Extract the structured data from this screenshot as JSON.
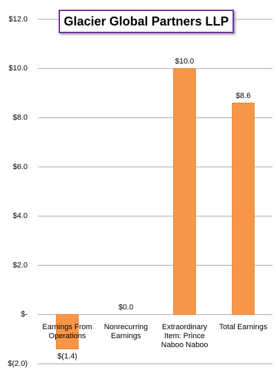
{
  "chart_data": {
    "type": "bar",
    "title": "Glacier Global Partners LLP",
    "categories": [
      "Earnings From Operations",
      "Nonrecurring Earnings",
      "Extraordinary Item: Prince Naboo Naboo",
      "Total Earnings"
    ],
    "values": [
      -1.4,
      0.0,
      10.0,
      8.6
    ],
    "value_labels": [
      "$(1.4)",
      "$0.0",
      "$10.0",
      "$8.6"
    ],
    "color": "#f79646",
    "ylim": [
      -2,
      12
    ],
    "yticks": [
      {
        "value": -2,
        "label": "$(2.0)"
      },
      {
        "value": 0,
        "label": "$-"
      },
      {
        "value": 2,
        "label": "$2.0"
      },
      {
        "value": 4,
        "label": "$4.0"
      },
      {
        "value": 6,
        "label": "$6.0"
      },
      {
        "value": 8,
        "label": "$8.0"
      },
      {
        "value": 10,
        "label": "$10.0"
      },
      {
        "value": 12,
        "label": "$12.0"
      }
    ],
    "grid": true
  }
}
